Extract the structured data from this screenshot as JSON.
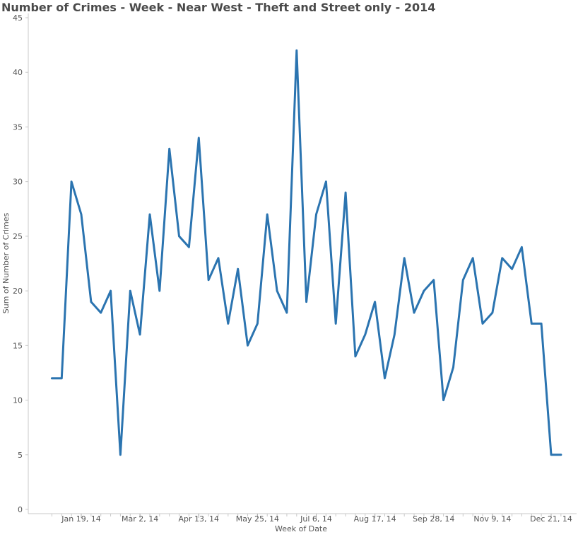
{
  "chart_data": {
    "type": "line",
    "title": "Number of Crimes - Week - Near West - Theft and Street only - 2014",
    "xlabel": "Week of Date",
    "ylabel": "Sum of Number of Crimes",
    "ylim": [
      0,
      45
    ],
    "y_ticks": [
      "0",
      "5",
      "10",
      "15",
      "20",
      "25",
      "30",
      "35",
      "40",
      "45"
    ],
    "x_ticks": [
      {
        "label": "Jan 19, 14",
        "date": "2014-01-19"
      },
      {
        "label": "Mar 2, 14",
        "date": "2014-03-02"
      },
      {
        "label": "Apr 13, 14",
        "date": "2014-04-13"
      },
      {
        "label": "May 25, 14",
        "date": "2014-05-25"
      },
      {
        "label": "Jul 6, 14",
        "date": "2014-07-06"
      },
      {
        "label": "Aug 17, 14",
        "date": "2014-08-17"
      },
      {
        "label": "Sep 28, 14",
        "date": "2014-09-28"
      },
      {
        "label": "Nov 9, 14",
        "date": "2014-11-09"
      },
      {
        "label": "Dec 21, 14",
        "date": "2014-12-21"
      }
    ],
    "grid": false,
    "line_color": "#2b74b0",
    "series": [
      {
        "x": [
          "2013-12-29",
          "2014-01-05",
          "2014-01-12",
          "2014-01-19",
          "2014-01-26",
          "2014-02-02",
          "2014-02-09",
          "2014-02-16",
          "2014-02-23",
          "2014-03-02",
          "2014-03-09",
          "2014-03-16",
          "2014-03-23",
          "2014-03-30",
          "2014-04-06",
          "2014-04-13",
          "2014-04-20",
          "2014-04-27",
          "2014-05-04",
          "2014-05-11",
          "2014-05-18",
          "2014-05-25",
          "2014-06-01",
          "2014-06-08",
          "2014-06-15",
          "2014-06-22",
          "2014-06-29",
          "2014-07-06",
          "2014-07-13",
          "2014-07-20",
          "2014-07-27",
          "2014-08-03",
          "2014-08-10",
          "2014-08-17",
          "2014-08-24",
          "2014-08-31",
          "2014-09-07",
          "2014-09-14",
          "2014-09-21",
          "2014-09-28",
          "2014-10-05",
          "2014-10-12",
          "2014-10-19",
          "2014-10-26",
          "2014-11-02",
          "2014-11-09",
          "2014-11-16",
          "2014-11-23",
          "2014-11-30",
          "2014-12-07",
          "2014-12-14",
          "2014-12-21",
          "2014-12-28"
        ],
        "values": [
          12,
          12,
          30,
          27,
          19,
          18,
          20,
          5,
          20,
          16,
          27,
          20,
          33,
          25,
          24,
          34,
          21,
          23,
          17,
          22,
          15,
          17,
          27,
          20,
          18,
          42,
          19,
          27,
          30,
          17,
          29,
          14,
          16,
          19,
          12,
          16,
          23,
          18,
          20,
          21,
          10,
          13,
          21,
          23,
          17,
          18,
          23,
          22,
          24,
          17,
          17,
          5,
          5
        ]
      }
    ]
  }
}
